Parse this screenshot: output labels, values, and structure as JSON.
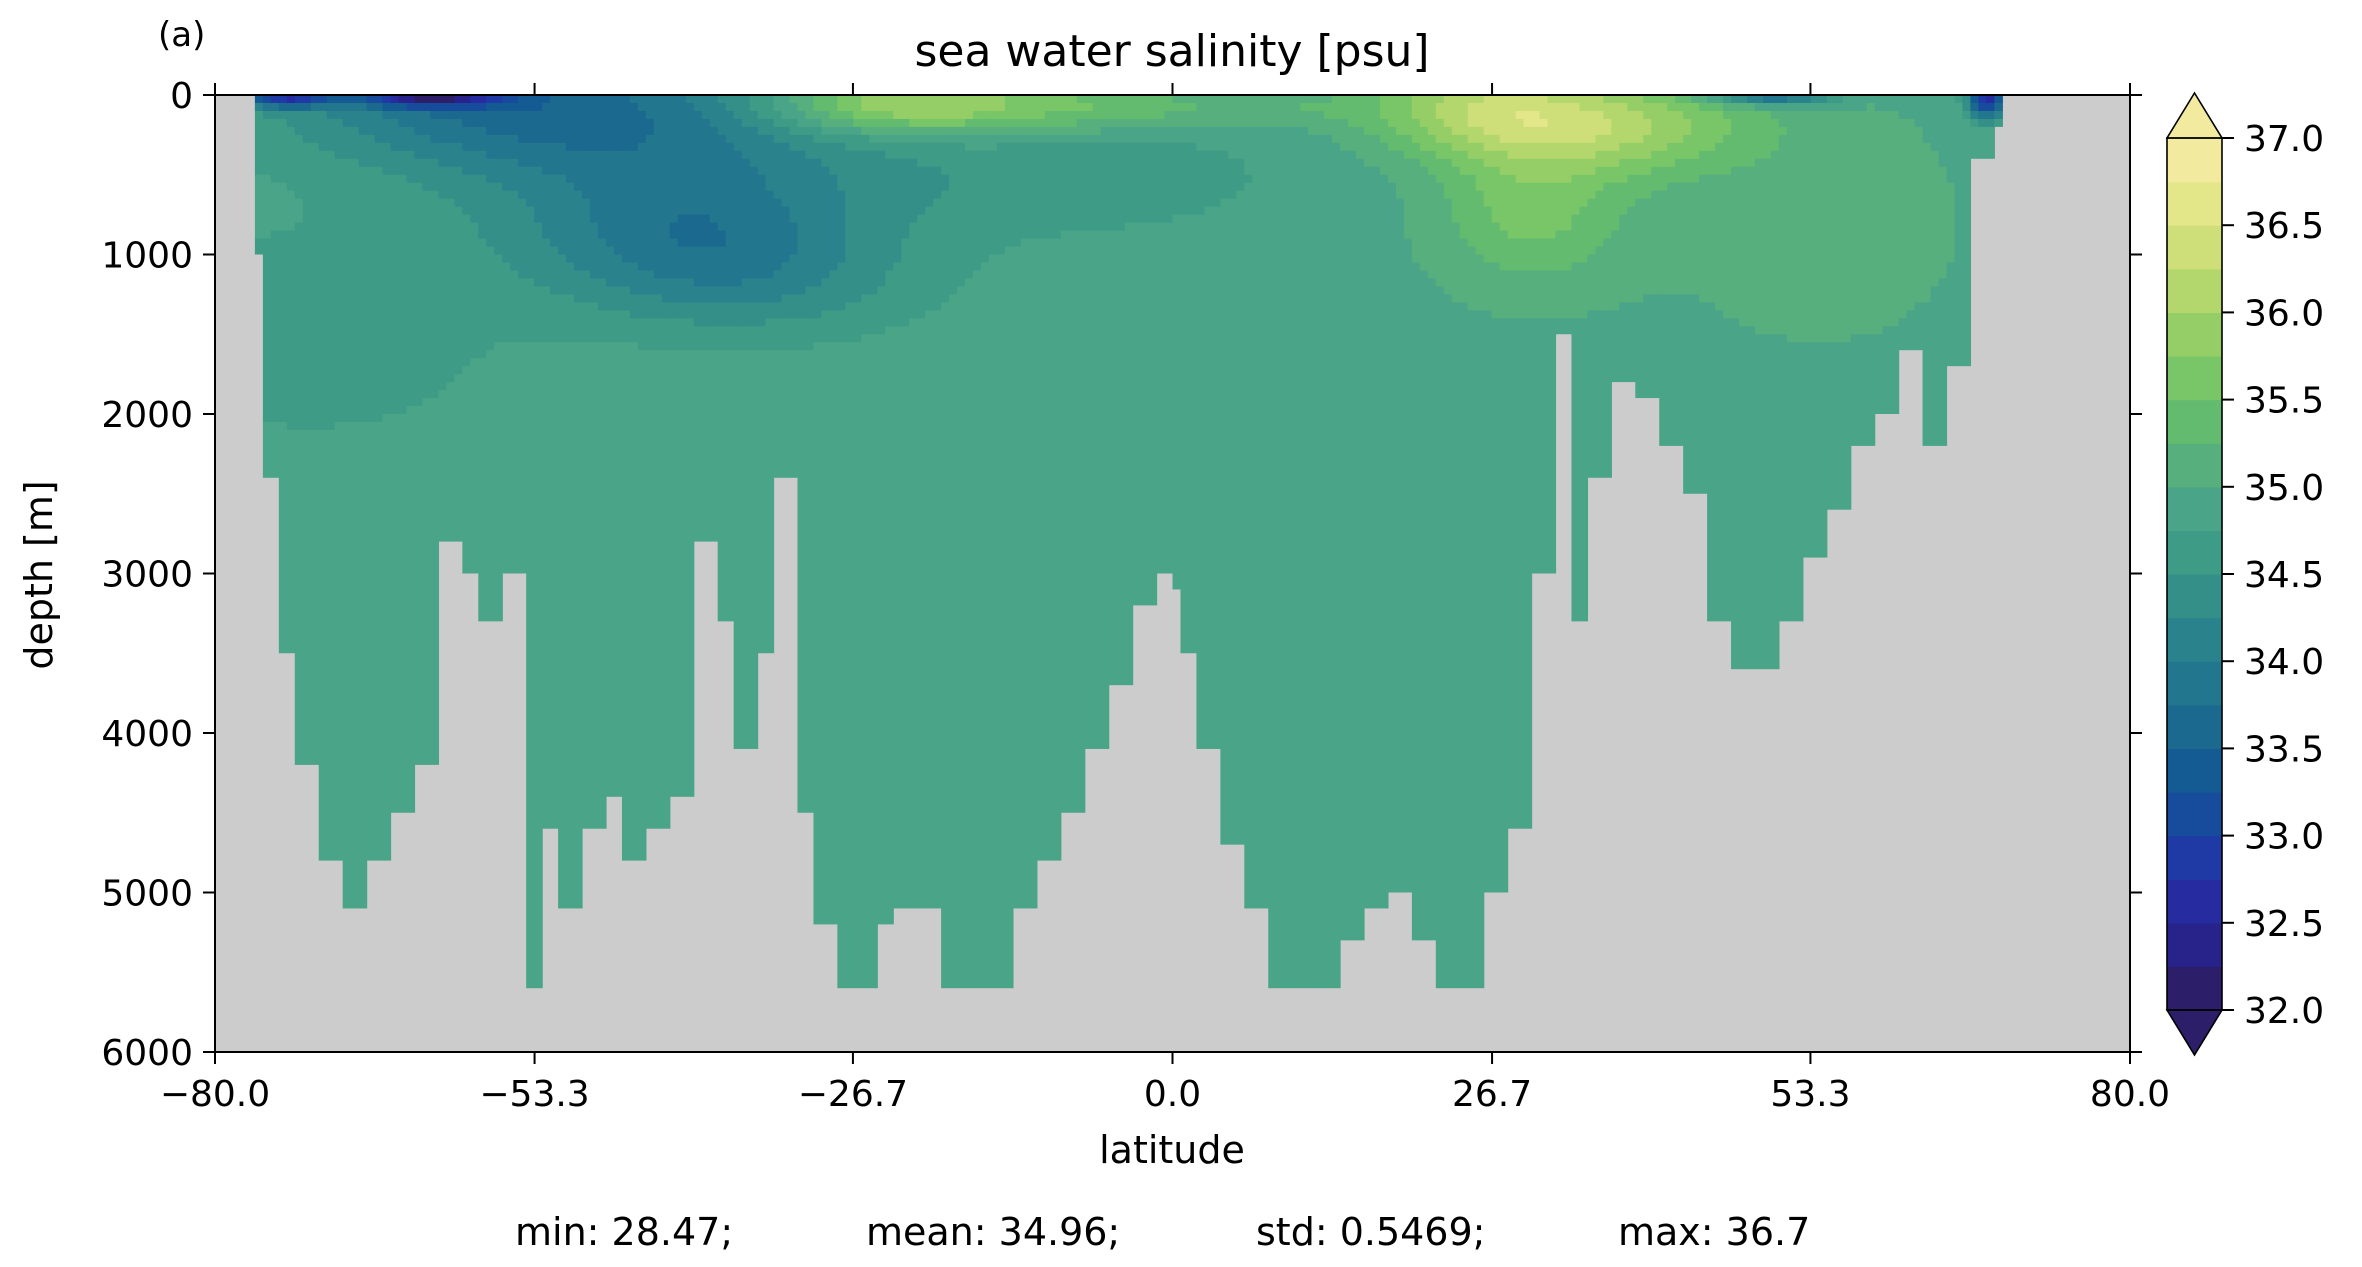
{
  "panel_label": "(a)",
  "stats": {
    "min": "min: 28.47;",
    "mean": "mean: 34.96;",
    "std": "std: 0.5469;",
    "max": "max: 36.7"
  },
  "colors": {
    "land": "#cccccc",
    "deep_water": "#4aa487",
    "cmap": [
      "#2c1e69",
      "#28238a",
      "#262ba0",
      "#1f3aa5",
      "#174b9b",
      "#155b93",
      "#1b698e",
      "#22768d",
      "#2a838c",
      "#348f89",
      "#3e9b85",
      "#4aa487",
      "#56af7d",
      "#63bb6f",
      "#78c667",
      "#95ce66",
      "#b3d76c",
      "#cede78",
      "#e4e68a",
      "#f2eb9f"
    ]
  },
  "chart_data": {
    "type": "heatmap",
    "title": "sea water salinity [psu]",
    "xlabel": "latitude",
    "ylabel": "depth [m]",
    "xlim": [
      -80.0,
      80.0
    ],
    "ylim": [
      6000,
      0
    ],
    "y_inverted": true,
    "xticks": [
      -80.0,
      -53.3,
      -26.7,
      0.0,
      26.7,
      53.3,
      80.0
    ],
    "xtick_labels": [
      "−80.0",
      "−53.3",
      "−26.7",
      "0.0",
      "26.7",
      "53.3",
      "80.0"
    ],
    "yticks": [
      0,
      1000,
      2000,
      3000,
      4000,
      5000,
      6000
    ],
    "ytick_labels": [
      "0",
      "1000",
      "2000",
      "3000",
      "4000",
      "5000",
      "6000"
    ],
    "colorbar": {
      "min": 32.0,
      "max": 37.0,
      "step": 0.25,
      "extend": "both",
      "ticks": [
        32.0,
        32.5,
        33.0,
        33.5,
        34.0,
        34.5,
        35.0,
        35.5,
        36.0,
        36.5,
        37.0
      ],
      "tick_labels": [
        "32.0",
        "32.5",
        "33.0",
        "33.5",
        "34.0",
        "34.5",
        "35.0",
        "35.5",
        "36.0",
        "36.5",
        "37.0"
      ]
    },
    "bathymetry": {
      "lat": [
        -77.5,
        -76.5,
        -75.0,
        -74.0,
        -72.0,
        -70.0,
        -68.5,
        -66.0,
        -64.0,
        -62.0,
        -60.0,
        -58.5,
        -57.0,
        -55.5,
        -53.0,
        -52.0,
        -50.0,
        -48.0,
        -46.5,
        -45.0,
        -43.0,
        -41.0,
        -39.0,
        -37.5,
        -35.5,
        -34.0,
        -32.0,
        -30.5,
        -29.0,
        -27.5,
        -26.5,
        -25.5,
        -24.0,
        -22.0,
        -20.0,
        -18.0,
        -16.0,
        -14.0,
        -12.0,
        -10.0,
        -8.0,
        -6.0,
        -4.0,
        -2.0,
        -0.5,
        0.5,
        1.5,
        3.0,
        5.0,
        7.0,
        9.0,
        11.0,
        13.0,
        15.0,
        17.0,
        19.0,
        21.0,
        23.0,
        25.0,
        27.0,
        29.0,
        31.0,
        32.5,
        34.0,
        36.0,
        38.0,
        40.0,
        42.0,
        44.0,
        46.0,
        48.0,
        50.0,
        52.0,
        54.0,
        56.0,
        58.0,
        60.0,
        62.0,
        64.0,
        66.0,
        68.0,
        69.5
      ],
      "depth": [
        400,
        1000,
        2400,
        3500,
        4200,
        4800,
        5100,
        4800,
        4500,
        4200,
        2800,
        3000,
        3300,
        3000,
        5600,
        4600,
        5100,
        4600,
        4400,
        4800,
        4600,
        4400,
        2800,
        3300,
        4100,
        3500,
        2400,
        4500,
        5200,
        5600,
        5600,
        5600,
        5200,
        5100,
        5100,
        5600,
        5600,
        5600,
        5100,
        4800,
        4500,
        4100,
        3700,
        3200,
        3000,
        3100,
        3500,
        4100,
        4700,
        5100,
        5600,
        5600,
        5600,
        5300,
        5100,
        5000,
        5300,
        5600,
        5600,
        5000,
        4600,
        3000,
        1500,
        3300,
        2400,
        1800,
        1900,
        2200,
        2500,
        3300,
        3600,
        3600,
        3300,
        2900,
        2600,
        2200,
        2000,
        1600,
        2200,
        1700,
        400,
        200
      ],
      "water_lat_min": -76.5,
      "water_lat_max": 69.5
    },
    "fields": [
      {
        "lat": -72,
        "depth": 1500,
        "value": 34.6,
        "r": 16,
        "rd": 700
      },
      {
        "lat": -57,
        "depth": 50,
        "value": 33.9,
        "r": 18,
        "rd": 400
      },
      {
        "lat": -42,
        "depth": 400,
        "value": 34.2,
        "r": 18,
        "rd": 650
      },
      {
        "lat": -40,
        "depth": 900,
        "value": 34.3,
        "r": 14,
        "rd": 400
      },
      {
        "lat": -35,
        "depth": 1200,
        "value": 34.5,
        "r": 14,
        "rd": 350
      },
      {
        "lat": -10,
        "depth": 500,
        "value": 34.6,
        "r": 20,
        "rd": 400
      },
      {
        "lat": -26,
        "depth": 60,
        "value": 35.8,
        "r": 9,
        "rd": 180
      },
      {
        "lat": -17,
        "depth": 60,
        "value": 35.7,
        "r": 9,
        "rd": 200
      },
      {
        "lat": -5,
        "depth": 80,
        "value": 35.4,
        "r": 8,
        "rd": 150
      },
      {
        "lat": 8,
        "depth": 80,
        "value": 35.2,
        "r": 8,
        "rd": 120
      },
      {
        "lat": 26,
        "depth": 80,
        "value": 36.0,
        "r": 10,
        "rd": 300
      },
      {
        "lat": 30,
        "depth": 700,
        "value": 35.6,
        "r": 8,
        "rd": 500
      },
      {
        "lat": 38,
        "depth": 200,
        "value": 35.8,
        "r": 11,
        "rd": 300
      },
      {
        "lat": 54,
        "depth": 800,
        "value": 35.1,
        "r": 14,
        "rd": 900
      },
      {
        "lat": -62,
        "depth": 20,
        "value": 33.2,
        "r": 6,
        "rd": 60
      },
      {
        "lat": -74,
        "depth": 20,
        "value": 33.2,
        "r": 4,
        "rd": 60
      },
      {
        "lat": 50,
        "depth": 15,
        "value": 33.6,
        "r": 5,
        "rd": 50
      },
      {
        "lat": 68,
        "depth": 30,
        "value": 32.6,
        "r": 1.5,
        "rd": 120
      }
    ],
    "stats": {
      "min": 28.47,
      "mean": 34.96,
      "std": 0.5469,
      "max": 36.7
    }
  }
}
